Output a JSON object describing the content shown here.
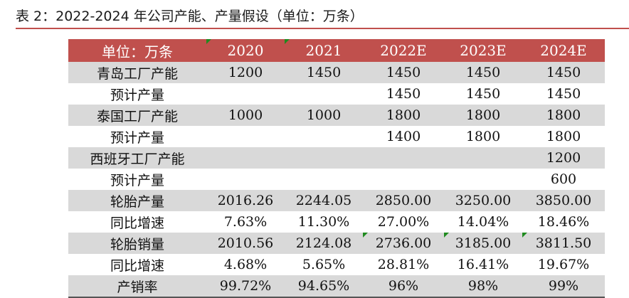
{
  "caption": "表 2：2022-2024 年公司产能、产量假设（单位：万条）",
  "header": [
    "单位：万条",
    "2020",
    "2021",
    "2022E",
    "2023E",
    "2024E"
  ],
  "rows": [
    [
      "青岛工厂产能",
      "1200",
      "1450",
      "1450",
      "1450",
      "1450"
    ],
    [
      "预计产量",
      "",
      "",
      "1450",
      "1450",
      "1450"
    ],
    [
      "泰国工厂产能",
      "1000",
      "1000",
      "1800",
      "1800",
      "1800"
    ],
    [
      "预计产量",
      "",
      "",
      "1400",
      "1800",
      "1800"
    ],
    [
      "西班牙工厂产能",
      "",
      "",
      "",
      "",
      "1200"
    ],
    [
      "预计产量",
      "",
      "",
      "",
      "",
      "600"
    ],
    [
      "轮胎产量",
      "2016.26",
      "2244.05",
      "2850.00",
      "3250.00",
      "3850.00"
    ],
    [
      "同比增速",
      "7.63%",
      "11.30%",
      "27.00%",
      "14.04%",
      "18.46%"
    ],
    [
      "轮胎销量",
      "2010.56",
      "2124.08",
      "2736.00",
      "3185.00",
      "3811.50"
    ],
    [
      "同比增速",
      "4.68%",
      "5.65%",
      "28.81%",
      "16.41%",
      "19.67%"
    ],
    [
      "产销率",
      "99.72%",
      "94.65%",
      "96%",
      "98%",
      "99%"
    ]
  ],
  "colors": {
    "accent": "#c0504d",
    "row_shade": "#d9d9d9",
    "marker": "#1f8b1f"
  }
}
